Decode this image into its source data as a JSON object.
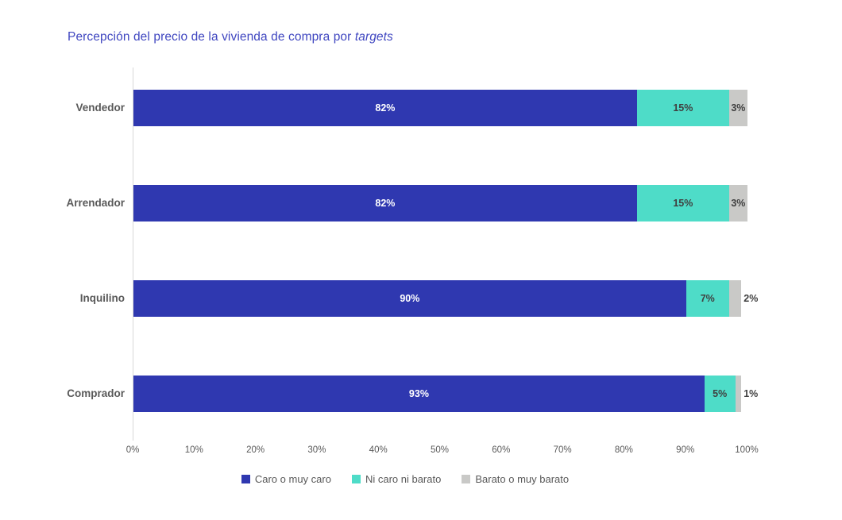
{
  "title": {
    "main": "Percepción del precio de la vivienda de compra por ",
    "italic": "targets"
  },
  "colors": {
    "title": "#3F46C0",
    "category_text": "#595959",
    "axis_text": "#595959",
    "axis_line": "#D9D9D9",
    "label_on_dark": "#FFFFFF",
    "label_on_light": "#404040",
    "legend_text": "#595959"
  },
  "chart_data": {
    "type": "bar",
    "orientation": "horizontal",
    "stacked": true,
    "title": "Percepción del precio de la vivienda de compra por targets",
    "categories": [
      "Vendedor",
      "Arrendador",
      "Inquilino",
      "Comprador"
    ],
    "series": [
      {
        "name": "Caro o muy caro",
        "color": "#2F38B0",
        "values": [
          82,
          82,
          90,
          93
        ]
      },
      {
        "name": "Ni caro ni barato",
        "color": "#4EDCC8",
        "values": [
          15,
          15,
          7,
          5
        ]
      },
      {
        "name": "Barato o muy barato",
        "color": "#C9C9C7",
        "values": [
          3,
          3,
          2,
          1
        ]
      }
    ],
    "value_labels": [
      [
        "82%",
        "15%",
        "3%"
      ],
      [
        "82%",
        "15%",
        "3%"
      ],
      [
        "90%",
        "7%",
        "2%"
      ],
      [
        "93%",
        "5%",
        "1%"
      ]
    ],
    "x_ticks": [
      "0%",
      "10%",
      "20%",
      "30%",
      "40%",
      "50%",
      "60%",
      "70%",
      "80%",
      "90%",
      "100%"
    ],
    "xlim": [
      0,
      100
    ],
    "grid": false,
    "legend_position": "bottom"
  },
  "legend": {
    "items": [
      {
        "label": "Caro o muy caro",
        "color": "#2F38B0"
      },
      {
        "label": "Ni caro ni barato",
        "color": "#4EDCC8"
      },
      {
        "label": "Barato o muy barato",
        "color": "#C9C9C7"
      }
    ]
  }
}
